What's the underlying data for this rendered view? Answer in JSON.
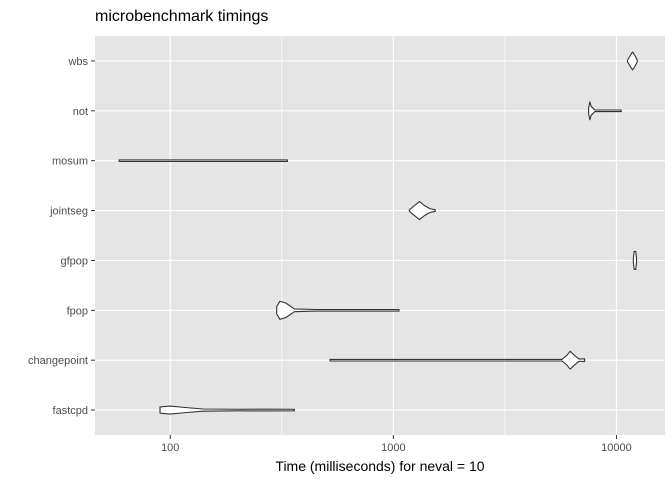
{
  "chart_data": {
    "type": "violin",
    "title": "microbenchmark timings",
    "xlabel": "Time (milliseconds) for neval = 10",
    "ylabel": "",
    "x_scale": "log10",
    "xlim": [
      46,
      16500
    ],
    "x_ticks": [
      100,
      1000,
      10000
    ],
    "x_tick_labels": [
      "100",
      "1000",
      "10000"
    ],
    "grid": true,
    "background": "#e5e5e5",
    "grid_color": "#ffffff",
    "line_color": "#333333",
    "categories": [
      "wbs",
      "not",
      "mosum",
      "jointseg",
      "gfpop",
      "fpop",
      "changepoint",
      "fastcpd"
    ],
    "series": [
      {
        "category": "wbs",
        "min": 11200,
        "max": 12400,
        "mode": 11800,
        "shape": [
          [
            11200,
            0.05
          ],
          [
            11500,
            0.55
          ],
          [
            11800,
            1.0
          ],
          [
            12100,
            0.6
          ],
          [
            12400,
            0.05
          ]
        ]
      },
      {
        "category": "not",
        "min": 7500,
        "max": 10500,
        "mode": 7600,
        "shape": [
          [
            7500,
            0.3
          ],
          [
            7600,
            1.0
          ],
          [
            7700,
            0.5
          ],
          [
            8000,
            0.05
          ],
          [
            9000,
            0.03
          ],
          [
            10500,
            0.04
          ]
        ]
      },
      {
        "category": "mosum",
        "min": 59,
        "max": 335,
        "mode": 200,
        "shape": [
          [
            59,
            0.03
          ],
          [
            120,
            0.03
          ],
          [
            200,
            0.04
          ],
          [
            335,
            0.03
          ]
        ]
      },
      {
        "category": "jointseg",
        "min": 1180,
        "max": 1540,
        "mode": 1310,
        "shape": [
          [
            1180,
            0.05
          ],
          [
            1250,
            0.6
          ],
          [
            1310,
            1.0
          ],
          [
            1380,
            0.55
          ],
          [
            1460,
            0.2
          ],
          [
            1540,
            0.1
          ]
        ]
      },
      {
        "category": "gfpop",
        "min": 11900,
        "max": 12300,
        "mode": 12100,
        "shape": [
          [
            11900,
            0.2
          ],
          [
            12000,
            1.0
          ],
          [
            12100,
            1.0
          ],
          [
            12200,
            1.0
          ],
          [
            12300,
            0.2
          ]
        ]
      },
      {
        "category": "fpop",
        "min": 300,
        "max": 1060,
        "mode": 315,
        "shape": [
          [
            300,
            0.4
          ],
          [
            310,
            1.0
          ],
          [
            330,
            0.8
          ],
          [
            360,
            0.15
          ],
          [
            450,
            0.05
          ],
          [
            1060,
            0.05
          ]
        ]
      },
      {
        "category": "changepoint",
        "min": 520,
        "max": 7200,
        "mode": 6200,
        "shape": [
          [
            520,
            0.03
          ],
          [
            3000,
            0.03
          ],
          [
            5700,
            0.05
          ],
          [
            6000,
            0.55
          ],
          [
            6200,
            1.0
          ],
          [
            6500,
            0.5
          ],
          [
            6800,
            0.12
          ],
          [
            7200,
            0.15
          ]
        ]
      },
      {
        "category": "fastcpd",
        "min": 90,
        "max": 360,
        "mode": 100,
        "shape": [
          [
            90,
            0.35
          ],
          [
            100,
            0.45
          ],
          [
            115,
            0.3
          ],
          [
            140,
            0.12
          ],
          [
            200,
            0.05
          ],
          [
            270,
            0.1
          ],
          [
            360,
            0.04
          ]
        ]
      }
    ]
  }
}
